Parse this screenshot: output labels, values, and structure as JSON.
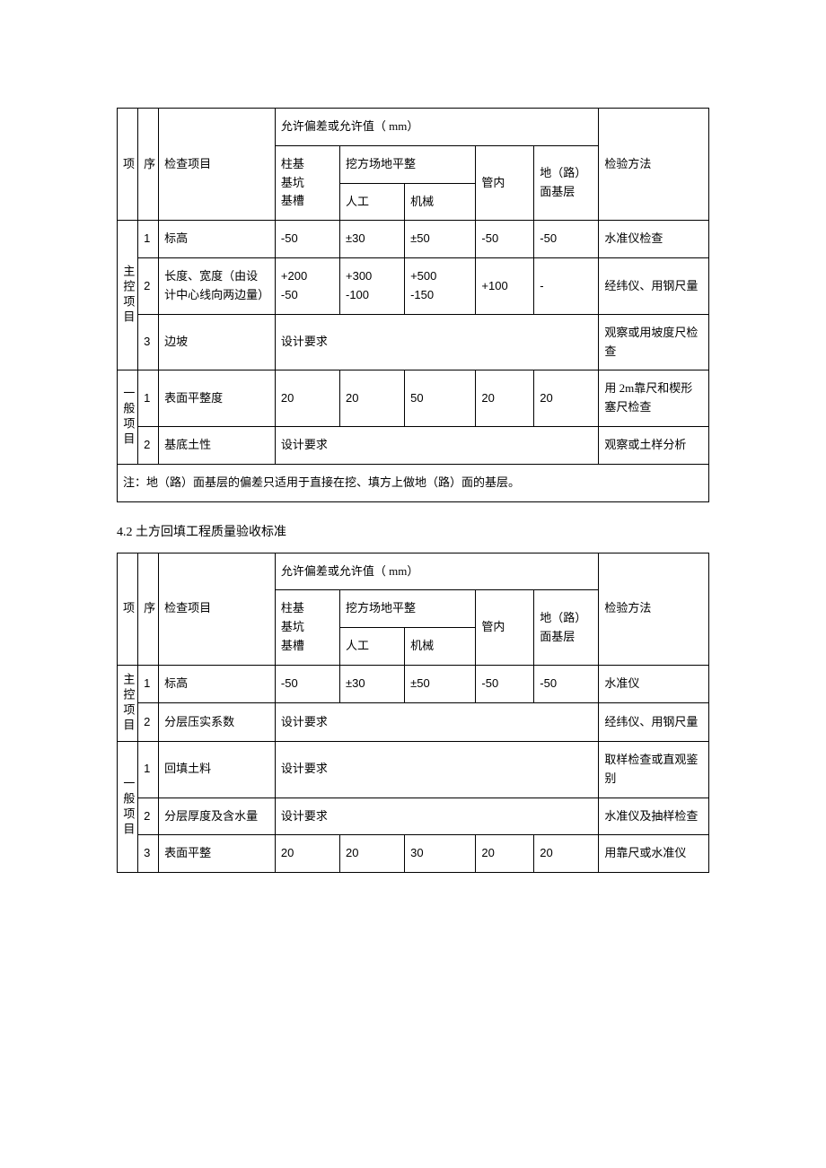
{
  "t1": {
    "header": {
      "deviation_title": "允许偏差或允许值（ mm）",
      "proj": "项",
      "seq": "序",
      "inspect_item": "检查项目",
      "col_pillar": "柱基\n基坑\n基槽",
      "excavation": "挖方场地平整",
      "manual": "人工",
      "machine": "机械",
      "pipe": "管内",
      "road": "地（路）\n面基层",
      "method": "检验方法"
    },
    "group1_label": "主控项目",
    "group2_label": "一般项目",
    "rows": {
      "r1": {
        "seq": "1",
        "item": "标高",
        "c1": "-50",
        "c2": "±30",
        "c3": "±50",
        "c4": "-50",
        "c5": "-50",
        "method": "水准仪检查"
      },
      "r2": {
        "seq": "2",
        "item": "长度、宽度（由设计中心线向两边量）",
        "c1": "+200\n-50",
        "c2": "+300\n-100",
        "c3": "+500\n-150",
        "c4": "+100",
        "c5": "-",
        "method": "经纬仪、用钢尺量"
      },
      "r3": {
        "seq": "3",
        "item": "边坡",
        "span": "设计要求",
        "method": "观察或用坡度尺检查"
      },
      "r4": {
        "seq": "1",
        "item": "表面平整度",
        "c1": "20",
        "c2": "20",
        "c3": "50",
        "c4": "20",
        "c5": "20",
        "method": "用 2m靠尺和楔形塞尺检查"
      },
      "r5": {
        "seq": "2",
        "item": "基底土性",
        "span": "设计要求",
        "method": "观察或土样分析"
      }
    },
    "footnote": "注：地（路）面基层的偏差只适用于直接在挖、填方上做地（路）面的基层。"
  },
  "section2_title": "4.2 土方回填工程质量验收标准",
  "t2": {
    "header": {
      "deviation_title": "允许偏差或允许值（ mm）",
      "proj": "项",
      "seq": "序",
      "inspect_item": "检查项目",
      "col_pillar": "柱基\n基坑\n基槽",
      "excavation": "挖方场地平整",
      "manual": "人工",
      "machine": "机械",
      "pipe": "管内",
      "road": "地（路）\n面基层",
      "method": "检验方法"
    },
    "group1_label": "主控项目",
    "group2_label": "一般项目",
    "rows": {
      "r1": {
        "seq": "1",
        "item": "标高",
        "c1": "-50",
        "c2": "±30",
        "c3": "±50",
        "c4": "-50",
        "c5": "-50",
        "method": "水准仪"
      },
      "r2": {
        "seq": "2",
        "item": "分层压实系数",
        "span": "设计要求",
        "method": "经纬仪、用钢尺量"
      },
      "r3": {
        "seq": "1",
        "item": "回填土料",
        "span": "设计要求",
        "method": "取样检查或直观鉴别"
      },
      "r4": {
        "seq": "2",
        "item": "分层厚度及含水量",
        "span": "设计要求",
        "method": "水准仪及抽样检查"
      },
      "r5": {
        "seq": "3",
        "item": "表面平整",
        "c1": "20",
        "c2": "20",
        "c3": "30",
        "c4": "20",
        "c5": "20",
        "method": "用靠尺或水准仪"
      }
    }
  }
}
